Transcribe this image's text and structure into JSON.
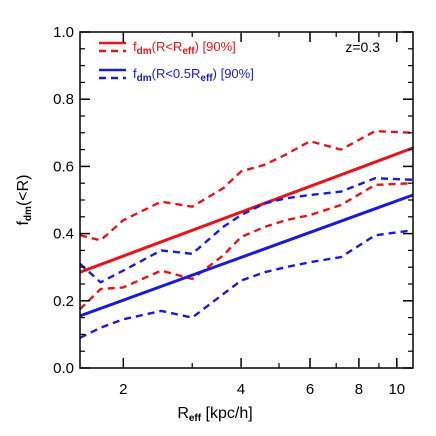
{
  "chart_data": {
    "type": "line",
    "xscale": "log",
    "xlim": [
      1.55,
      11
    ],
    "ylim": [
      0.0,
      1.0
    ],
    "xticks": [
      2,
      4,
      6,
      8,
      10
    ],
    "yticks": [
      0.0,
      0.2,
      0.4,
      0.6,
      0.8,
      1.0
    ],
    "xtick_labels": [
      "2",
      "4",
      "6",
      "8",
      "10"
    ],
    "ytick_labels": [
      "0.0",
      "0.2",
      "0.4",
      "0.6",
      "0.8",
      "1.0"
    ],
    "xlabel": {
      "main": "R",
      "sub": "eff",
      "rest": " [kpc/h]"
    },
    "ylabel": {
      "main": "f",
      "sub": "dm",
      "rest": "(<R)"
    },
    "annotation": "z=0.3",
    "legend": [
      {
        "label_main": "f",
        "label_sub": "dm",
        "label_mid": "(R<R",
        "label_sub2": "eff",
        "label_end": ") [90%]",
        "color": "#e8141c"
      },
      {
        "label_main": "f",
        "label_sub": "dm",
        "label_mid": "(R<0.5R",
        "label_sub2": "eff",
        "label_end": ") [90%]",
        "color": "#1a1adc"
      }
    ],
    "series": [
      {
        "color": "#e8141c",
        "style": "solid",
        "points": [
          [
            1.55,
            0.285
          ],
          [
            11,
            0.655
          ]
        ]
      },
      {
        "color": "#e8141c",
        "style": "dashed",
        "points": [
          [
            1.55,
            0.395
          ],
          [
            1.75,
            0.38
          ],
          [
            2.0,
            0.44
          ],
          [
            2.5,
            0.495
          ],
          [
            3.0,
            0.48
          ],
          [
            3.6,
            0.535
          ],
          [
            4.0,
            0.585
          ],
          [
            4.6,
            0.605
          ],
          [
            5.2,
            0.635
          ],
          [
            6.0,
            0.675
          ],
          [
            7.2,
            0.65
          ],
          [
            8.8,
            0.705
          ],
          [
            11,
            0.7
          ]
        ]
      },
      {
        "color": "#e8141c",
        "style": "dashed",
        "points": [
          [
            1.55,
            0.175
          ],
          [
            1.75,
            0.235
          ],
          [
            2.0,
            0.24
          ],
          [
            2.5,
            0.29
          ],
          [
            3.0,
            0.265
          ],
          [
            3.6,
            0.335
          ],
          [
            4.0,
            0.39
          ],
          [
            4.6,
            0.42
          ],
          [
            5.2,
            0.44
          ],
          [
            6.0,
            0.455
          ],
          [
            7.2,
            0.485
          ],
          [
            8.8,
            0.545
          ],
          [
            11,
            0.55
          ]
        ]
      },
      {
        "color": "#1a1adc",
        "style": "solid",
        "points": [
          [
            1.55,
            0.155
          ],
          [
            11,
            0.515
          ]
        ]
      },
      {
        "color": "#1a1adc",
        "style": "dashed",
        "points": [
          [
            1.55,
            0.31
          ],
          [
            1.75,
            0.255
          ],
          [
            2.0,
            0.29
          ],
          [
            2.5,
            0.35
          ],
          [
            3.0,
            0.34
          ],
          [
            3.6,
            0.42
          ],
          [
            4.0,
            0.455
          ],
          [
            4.6,
            0.49
          ],
          [
            5.2,
            0.505
          ],
          [
            6.0,
            0.515
          ],
          [
            7.2,
            0.525
          ],
          [
            8.8,
            0.565
          ],
          [
            11,
            0.56
          ]
        ]
      },
      {
        "color": "#1a1adc",
        "style": "dashed",
        "points": [
          [
            1.55,
            0.09
          ],
          [
            1.75,
            0.12
          ],
          [
            2.0,
            0.145
          ],
          [
            2.5,
            0.17
          ],
          [
            3.0,
            0.15
          ],
          [
            3.6,
            0.22
          ],
          [
            4.0,
            0.26
          ],
          [
            4.6,
            0.285
          ],
          [
            5.2,
            0.3
          ],
          [
            6.0,
            0.315
          ],
          [
            7.2,
            0.33
          ],
          [
            8.8,
            0.395
          ],
          [
            11,
            0.41
          ]
        ]
      }
    ]
  }
}
